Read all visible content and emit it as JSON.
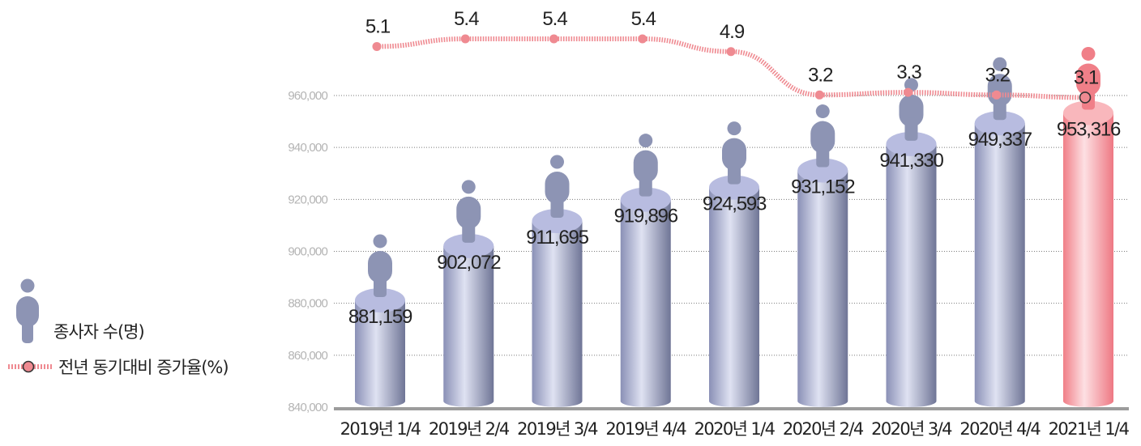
{
  "chart_data": {
    "type": "bar",
    "categories": [
      "2019년 1/4",
      "2019년 2/4",
      "2019년 3/4",
      "2019년 4/4",
      "2020년 1/4",
      "2020년 2/4",
      "2020년 3/4",
      "2020년 4/4",
      "2021년 1/4"
    ],
    "series": [
      {
        "name": "종사자 수(명)",
        "type": "bar",
        "axis": "left",
        "values": [
          881159,
          902072,
          911695,
          919896,
          924593,
          931152,
          941330,
          949337,
          953316
        ],
        "labels": [
          "881,159",
          "902,072",
          "911,695",
          "919,896",
          "924,593",
          "931,152",
          "941,330",
          "949,337",
          "953,316"
        ]
      },
      {
        "name": "전년 동기대비 증가율(%)",
        "type": "line",
        "axis": "right",
        "values": [
          5.1,
          5.4,
          5.4,
          5.4,
          4.9,
          3.2,
          3.3,
          3.2,
          3.1
        ],
        "labels": [
          "5.1",
          "5.4",
          "5.4",
          "5.4",
          "4.9",
          "3.2",
          "3.3",
          "3.2",
          "3.1"
        ]
      }
    ],
    "y_ticks": [
      "840,000",
      "860,000",
      "880,000",
      "900,000",
      "920,000",
      "940,000",
      "960,000"
    ],
    "ylim": [
      840000,
      960000
    ],
    "grid": true,
    "legend_position": "left",
    "colors": {
      "bar": "#9aa1c6",
      "bar_highlight": "#f38e94",
      "line": "#ef8a91",
      "person_icon": "#8d94b4",
      "person_icon_highlight": "#f07f88"
    }
  },
  "legend": {
    "items": [
      {
        "label": "종사자 수(명)",
        "icon": "person-icon"
      },
      {
        "label": "전년 동기대비 증가율(%)",
        "icon": "line-marker-icon"
      }
    ]
  }
}
